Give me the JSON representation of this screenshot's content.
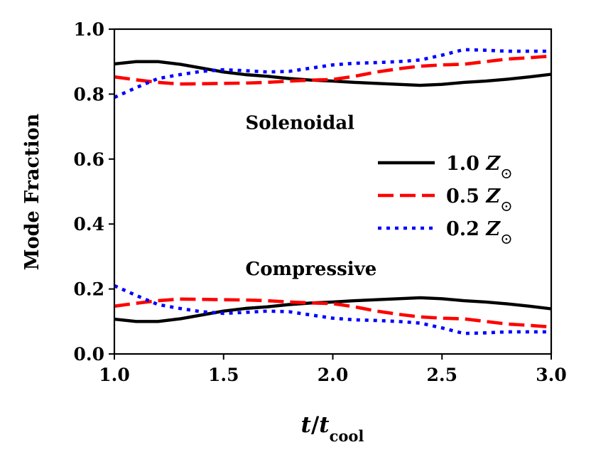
{
  "chart_data": {
    "type": "line",
    "xlabel": {
      "var": "t",
      "slash": "/",
      "sub_var": "t",
      "sub": "cool"
    },
    "ylabel": "Mode Fraction",
    "xlim": [
      1.0,
      3.0
    ],
    "ylim": [
      0.0,
      1.0
    ],
    "xticks": [
      1.0,
      1.5,
      2.0,
      2.5,
      3.0
    ],
    "xtick_labels": [
      "1.0",
      "1.5",
      "2.0",
      "2.5",
      "3.0"
    ],
    "yticks": [
      0.0,
      0.2,
      0.4,
      0.6,
      0.8,
      1.0
    ],
    "ytick_labels": [
      "0.0",
      "0.2",
      "0.4",
      "0.6",
      "0.8",
      "1.0"
    ],
    "grid": false,
    "legend_position": "right",
    "annotations": [
      {
        "text": "Solenoidal",
        "x": 1.6,
        "y": 0.71
      },
      {
        "text": "Compressive",
        "x": 1.6,
        "y": 0.26
      }
    ],
    "series": [
      {
        "name": "1.0 Z⊙",
        "label_value": "1.0",
        "label_var": "Z",
        "label_sym": "⊙",
        "color": "#000000",
        "style": "solid",
        "component": "solenoidal",
        "x": [
          1.0,
          1.1,
          1.2,
          1.3,
          1.4,
          1.5,
          1.6,
          1.7,
          1.8,
          1.9,
          2.0,
          2.1,
          2.2,
          2.3,
          2.4,
          2.5,
          2.6,
          2.7,
          2.8,
          2.9,
          3.0
        ],
        "y": [
          0.893,
          0.9,
          0.9,
          0.892,
          0.88,
          0.868,
          0.86,
          0.855,
          0.848,
          0.843,
          0.84,
          0.836,
          0.833,
          0.83,
          0.827,
          0.83,
          0.836,
          0.84,
          0.846,
          0.853,
          0.861
        ]
      },
      {
        "name": "1.0 Z⊙ compressive",
        "color": "#000000",
        "style": "solid",
        "component": "compressive",
        "x": [
          1.0,
          1.1,
          1.2,
          1.3,
          1.4,
          1.5,
          1.6,
          1.7,
          1.8,
          1.9,
          2.0,
          2.1,
          2.2,
          2.3,
          2.4,
          2.5,
          2.6,
          2.7,
          2.8,
          2.9,
          3.0
        ],
        "y": [
          0.107,
          0.1,
          0.1,
          0.108,
          0.12,
          0.132,
          0.14,
          0.145,
          0.152,
          0.157,
          0.16,
          0.164,
          0.167,
          0.17,
          0.173,
          0.17,
          0.164,
          0.16,
          0.154,
          0.147,
          0.139
        ]
      },
      {
        "name": "0.5 Z⊙",
        "label_value": "0.5",
        "label_var": "Z",
        "label_sym": "⊙",
        "color": "#ff0000",
        "style": "dashed",
        "component": "solenoidal",
        "x": [
          1.0,
          1.1,
          1.2,
          1.3,
          1.4,
          1.5,
          1.6,
          1.7,
          1.8,
          1.9,
          2.0,
          2.1,
          2.2,
          2.3,
          2.4,
          2.5,
          2.6,
          2.7,
          2.8,
          2.9,
          3.0
        ],
        "y": [
          0.853,
          0.844,
          0.836,
          0.831,
          0.832,
          0.833,
          0.834,
          0.836,
          0.84,
          0.843,
          0.845,
          0.855,
          0.868,
          0.878,
          0.886,
          0.89,
          0.892,
          0.9,
          0.908,
          0.912,
          0.917
        ]
      },
      {
        "name": "0.5 Z⊙ compressive",
        "color": "#ff0000",
        "style": "dashed",
        "component": "compressive",
        "x": [
          1.0,
          1.1,
          1.2,
          1.3,
          1.4,
          1.5,
          1.6,
          1.7,
          1.8,
          1.9,
          2.0,
          2.1,
          2.2,
          2.3,
          2.4,
          2.5,
          2.6,
          2.7,
          2.8,
          2.9,
          3.0
        ],
        "y": [
          0.147,
          0.156,
          0.164,
          0.169,
          0.168,
          0.167,
          0.166,
          0.164,
          0.16,
          0.157,
          0.155,
          0.145,
          0.132,
          0.122,
          0.114,
          0.11,
          0.108,
          0.1,
          0.092,
          0.088,
          0.083
        ]
      },
      {
        "name": "0.2 Z⊙",
        "label_value": "0.2",
        "label_var": "Z",
        "label_sym": "⊙",
        "color": "#0000ff",
        "style": "dotted",
        "component": "solenoidal",
        "x": [
          1.0,
          1.1,
          1.2,
          1.3,
          1.4,
          1.5,
          1.6,
          1.7,
          1.8,
          1.9,
          2.0,
          2.1,
          2.2,
          2.3,
          2.4,
          2.5,
          2.6,
          2.7,
          2.8,
          2.9,
          3.0
        ],
        "y": [
          0.79,
          0.82,
          0.848,
          0.86,
          0.87,
          0.875,
          0.872,
          0.868,
          0.87,
          0.88,
          0.89,
          0.895,
          0.897,
          0.9,
          0.905,
          0.92,
          0.937,
          0.935,
          0.932,
          0.932,
          0.932
        ]
      },
      {
        "name": "0.2 Z⊙ compressive",
        "color": "#0000ff",
        "style": "dotted",
        "component": "compressive",
        "x": [
          1.0,
          1.1,
          1.2,
          1.3,
          1.4,
          1.5,
          1.6,
          1.7,
          1.8,
          1.9,
          2.0,
          2.1,
          2.2,
          2.3,
          2.4,
          2.5,
          2.6,
          2.7,
          2.8,
          2.9,
          3.0
        ],
        "y": [
          0.21,
          0.18,
          0.152,
          0.14,
          0.13,
          0.125,
          0.128,
          0.132,
          0.13,
          0.12,
          0.11,
          0.105,
          0.103,
          0.1,
          0.095,
          0.08,
          0.063,
          0.065,
          0.068,
          0.068,
          0.068
        ]
      }
    ]
  }
}
